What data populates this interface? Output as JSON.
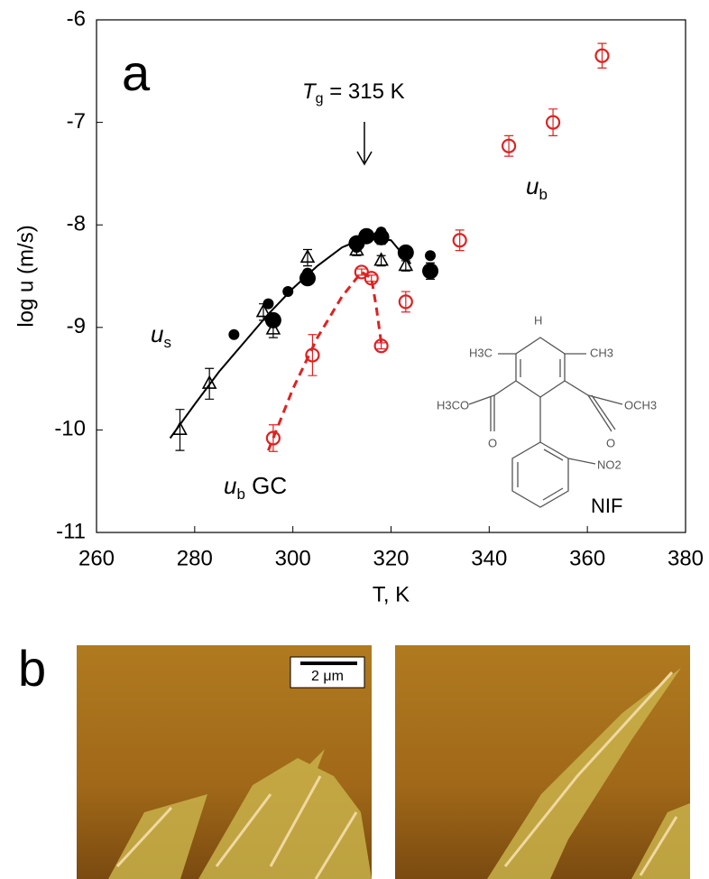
{
  "chart_data": {
    "type": "scatter",
    "xlabel": "T, K",
    "ylabel": "log u (m/s)",
    "xlim": [
      260,
      380
    ],
    "ylim": [
      -11,
      -6
    ],
    "xticks": [
      260,
      280,
      300,
      320,
      340,
      360,
      380
    ],
    "yticks": [
      -11,
      -10,
      -9,
      -8,
      -7,
      -6
    ],
    "series": [
      {
        "color": "#000000",
        "marker": "line",
        "dash": false,
        "x": [
          275,
          280,
          285,
          290,
          295,
          300,
          305,
          310,
          315,
          320,
          324
        ],
        "values": [
          -10.08,
          -9.75,
          -9.43,
          -9.15,
          -8.87,
          -8.62,
          -8.4,
          -8.22,
          -8.12,
          -8.15,
          -8.38
        ]
      },
      {
        "color": "#dd2222",
        "marker": "line",
        "dash": true,
        "x": [
          295,
          300,
          305,
          310,
          314,
          316,
          317,
          318
        ],
        "values": [
          -10.2,
          -9.6,
          -9.1,
          -8.7,
          -8.46,
          -8.52,
          -8.8,
          -9.15
        ]
      },
      {
        "color": "#000000",
        "marker": "circle-filled",
        "size": 6,
        "x": [
          288,
          295,
          299,
          303,
          313,
          318,
          328
        ],
        "values": [
          -9.07,
          -8.77,
          -8.65,
          -8.47,
          -8.22,
          -8.07,
          -8.3
        ]
      },
      {
        "color": "#000000",
        "marker": "circle-filled",
        "size": 9,
        "x": [
          296,
          303,
          313,
          315,
          318,
          323,
          328
        ],
        "values": [
          -8.93,
          -8.52,
          -8.18,
          -8.11,
          -8.12,
          -8.27,
          -8.45
        ],
        "errors": [
          0.05,
          0.05,
          0.05,
          0.05,
          0.07,
          0.05,
          0.08
        ]
      },
      {
        "color": "#000000",
        "marker": "triangle-open",
        "size": 8,
        "x": [
          277,
          283,
          294,
          296,
          303,
          313,
          318,
          323
        ],
        "values": [
          -10.0,
          -9.55,
          -8.85,
          -9.02,
          -8.32,
          -8.25,
          -8.35,
          -8.4
        ],
        "errors": [
          0.2,
          0.15,
          0.08,
          0.08,
          0.08,
          0.05,
          0.05,
          0.05
        ]
      },
      {
        "color": "#dd2222",
        "marker": "circle-open",
        "size": 7,
        "x": [
          296,
          304,
          314,
          316,
          318
        ],
        "values": [
          -10.08,
          -9.27,
          -8.46,
          -8.52,
          -9.18
        ],
        "errors": [
          0.13,
          0.2,
          0.03,
          0.03,
          0.03
        ]
      },
      {
        "color": "#dd2222",
        "marker": "circle-open",
        "size": 7,
        "x": [
          323,
          334,
          344,
          353,
          363
        ],
        "values": [
          -8.75,
          -8.15,
          -7.23,
          -7.0,
          -6.35
        ],
        "errors": [
          0.1,
          0.1,
          0.1,
          0.13,
          0.12
        ]
      }
    ],
    "annotations": {
      "panel_a": "a",
      "tg": {
        "text": "T",
        "sub": "g",
        "rest": " = 315 K"
      },
      "us": {
        "text": "u",
        "sub": "s"
      },
      "ub": {
        "text": "u",
        "sub": "b"
      },
      "ubgc": {
        "text": "u",
        "sub": "b",
        "rest": " GC"
      },
      "nif": "NIF"
    }
  },
  "molecule": {
    "h": "H",
    "h3c": "H3C",
    "ch3": "CH3",
    "h3co": "H3CO",
    "och3": "OCH3",
    "o_left": "O",
    "o_right": "O",
    "no2": "NO2"
  },
  "panel_b": {
    "label": "b",
    "scale_bar": "2 μm"
  }
}
